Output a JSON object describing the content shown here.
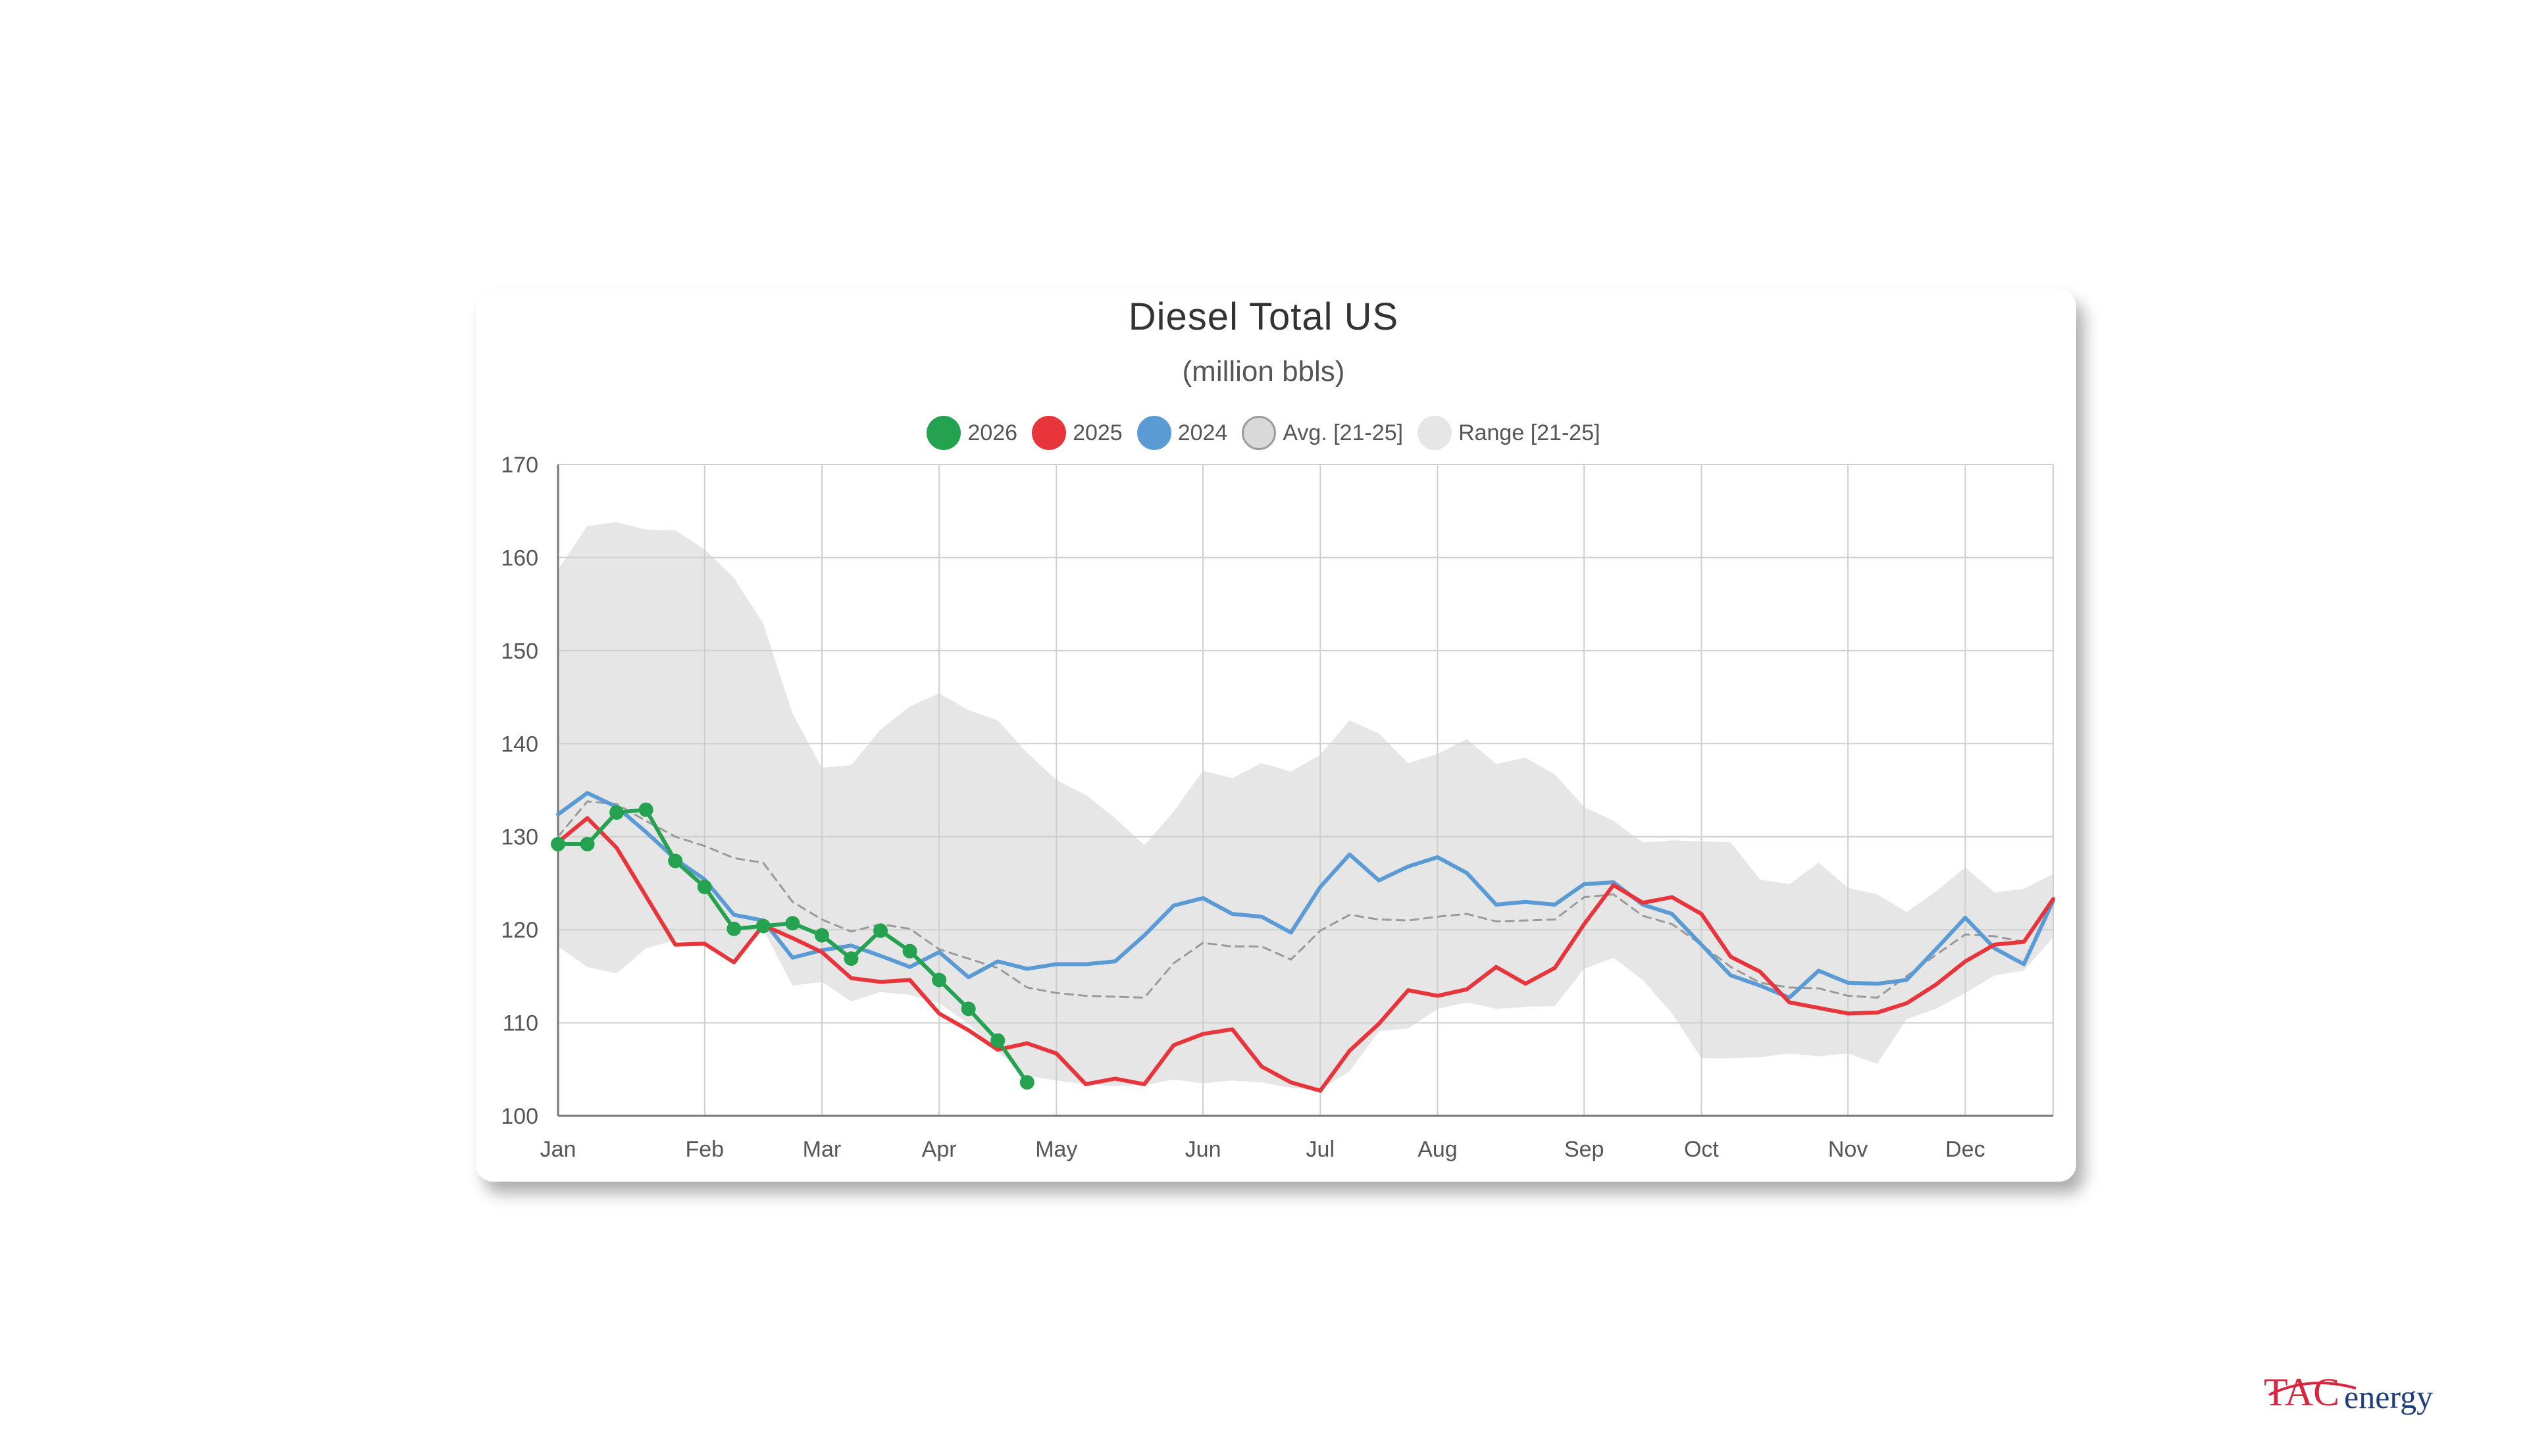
{
  "chart_data": {
    "type": "line",
    "title": "Diesel Total US",
    "subtitle": "(million bbls)",
    "ylim": [
      100,
      170
    ],
    "y_ticks": [
      100,
      110,
      120,
      130,
      140,
      150,
      160,
      170
    ],
    "x_unit": "week of year",
    "xlim": [
      1,
      52
    ],
    "x_tick_labels": [
      "Jan",
      "Feb",
      "Mar",
      "Apr",
      "May",
      "Jun",
      "Jul",
      "Aug",
      "Sep",
      "Oct",
      "Nov",
      "Dec"
    ],
    "x_tick_weeks": [
      1,
      6,
      10,
      14,
      18,
      23,
      27,
      31,
      36,
      40,
      45,
      49
    ],
    "grid": true,
    "legend_position": "top-center",
    "legend": [
      {
        "label": "2026",
        "color": "#25a24f"
      },
      {
        "label": "2025",
        "color": "#e8343b"
      },
      {
        "label": "2024",
        "color": "#5b9bd5"
      },
      {
        "label": "Avg. [21-25]",
        "color": "#d9d9d9"
      },
      {
        "label": "Range [21-25]",
        "color": "#e6e6e6"
      }
    ],
    "series": [
      {
        "name": "2026",
        "color": "#25a24f",
        "markers": true,
        "x": [
          1,
          2,
          3,
          4,
          5,
          6,
          7,
          8,
          9,
          10,
          11,
          12,
          13,
          14,
          15,
          16,
          17
        ],
        "y": [
          129.2,
          129.2,
          132.6,
          132.9,
          127.4,
          124.6,
          120.1,
          120.4,
          120.7,
          119.4,
          116.9,
          119.9,
          117.7,
          114.6,
          111.5,
          108.1,
          103.6
        ]
      },
      {
        "name": "2025",
        "color": "#e8343b",
        "x": [
          1,
          2,
          3,
          4,
          5,
          6,
          7,
          8,
          9,
          10,
          11,
          12,
          13,
          14,
          15,
          16,
          17,
          18,
          19,
          20,
          21,
          22,
          23,
          24,
          25,
          26,
          27,
          28,
          29,
          30,
          31,
          32,
          33,
          34,
          35,
          36,
          37,
          38,
          39,
          40,
          41,
          42,
          43,
          44,
          45,
          46,
          47,
          48,
          49,
          50,
          51,
          52
        ],
        "y": [
          129.4,
          132.0,
          128.8,
          123.6,
          118.4,
          118.5,
          116.5,
          120.5,
          119.1,
          117.6,
          114.8,
          114.4,
          114.6,
          111.0,
          109.2,
          107.1,
          107.8,
          106.7,
          103.4,
          104.0,
          103.4,
          107.6,
          108.8,
          109.3,
          105.3,
          103.6,
          102.7,
          107.0,
          109.9,
          113.5,
          112.9,
          113.6,
          116.0,
          114.2,
          115.9,
          120.6,
          124.8,
          122.9,
          123.5,
          121.7,
          117.1,
          115.5,
          112.2,
          111.6,
          111.0,
          111.1,
          112.1,
          114.1,
          116.6,
          118.4,
          118.7,
          123.3
        ]
      },
      {
        "name": "2024",
        "color": "#5b9bd5",
        "x": [
          1,
          2,
          3,
          4,
          5,
          6,
          7,
          8,
          9,
          10,
          11,
          12,
          13,
          14,
          15,
          16,
          17,
          18,
          19,
          20,
          21,
          22,
          23,
          24,
          25,
          26,
          27,
          28,
          29,
          30,
          31,
          32,
          33,
          34,
          35,
          36,
          37,
          38,
          39,
          40,
          41,
          42,
          43,
          44,
          45,
          46,
          47,
          48,
          49,
          50,
          51,
          52
        ],
        "y": [
          132.4,
          134.7,
          133.2,
          130.5,
          127.6,
          125.4,
          121.6,
          121.0,
          117.0,
          117.8,
          118.3,
          117.2,
          116.0,
          117.6,
          114.9,
          116.6,
          115.8,
          116.3,
          116.3,
          116.6,
          119.4,
          122.6,
          123.4,
          121.7,
          121.4,
          119.7,
          124.6,
          128.1,
          125.3,
          126.8,
          127.8,
          126.1,
          122.7,
          123.0,
          122.7,
          124.9,
          125.1,
          122.7,
          121.7,
          118.4,
          115.1,
          114.0,
          112.7,
          115.6,
          114.3,
          114.2,
          114.6,
          117.9,
          121.3,
          118.0,
          116.3,
          123.1
        ]
      },
      {
        "name": "Avg. [21-25]",
        "color": "#9a9a9a",
        "dashed": true,
        "x": [
          1,
          2,
          3,
          4,
          5,
          6,
          7,
          8,
          9,
          10,
          11,
          12,
          13,
          14,
          15,
          16,
          17,
          18,
          19,
          20,
          21,
          22,
          23,
          24,
          25,
          26,
          27,
          28,
          29,
          30,
          31,
          32,
          33,
          34,
          35,
          36,
          37,
          38,
          39,
          40,
          41,
          42,
          43,
          44,
          45,
          46,
          47,
          48,
          49,
          50,
          51,
          52
        ],
        "y": [
          130.0,
          133.8,
          133.5,
          131.7,
          130.0,
          129.0,
          127.7,
          127.2,
          123.0,
          121.1,
          119.8,
          120.6,
          120.1,
          117.9,
          116.9,
          115.9,
          113.8,
          113.2,
          112.9,
          112.8,
          112.7,
          116.4,
          118.6,
          118.2,
          118.2,
          116.8,
          119.9,
          121.6,
          121.1,
          121.0,
          121.4,
          121.7,
          120.9,
          121.0,
          121.1,
          123.5,
          123.8,
          121.5,
          120.6,
          118.4,
          116.0,
          114.3,
          113.8,
          113.7,
          112.9,
          112.7,
          115.0,
          117.3,
          119.5,
          119.3,
          118.7,
          123.0
        ]
      },
      {
        "name": "Range [21-25]",
        "color": "#e6e6e6",
        "type": "range",
        "x": [
          1,
          2,
          3,
          4,
          5,
          6,
          7,
          8,
          9,
          10,
          11,
          12,
          13,
          14,
          15,
          16,
          17,
          18,
          19,
          20,
          21,
          22,
          23,
          24,
          25,
          26,
          27,
          28,
          29,
          30,
          31,
          32,
          33,
          34,
          35,
          36,
          37,
          38,
          39,
          40,
          41,
          42,
          43,
          44,
          45,
          46,
          47,
          48,
          49,
          50,
          51,
          52
        ],
        "high": [
          158.7,
          163.4,
          163.8,
          163.0,
          162.9,
          160.9,
          157.8,
          152.9,
          143.2,
          137.4,
          137.7,
          141.5,
          144.0,
          145.4,
          143.6,
          142.5,
          139.0,
          136.1,
          134.5,
          132.0,
          129.1,
          132.7,
          137.1,
          136.3,
          137.9,
          137.0,
          138.8,
          142.5,
          141.1,
          137.9,
          138.9,
          140.5,
          137.8,
          138.5,
          136.7,
          133.2,
          131.7,
          129.4,
          129.6,
          129.5,
          129.4,
          125.4,
          124.9,
          127.2,
          124.5,
          123.8,
          121.9,
          124.1,
          126.7,
          124.0,
          124.4,
          126.0
        ],
        "low": [
          118.2,
          116.0,
          115.3,
          118.0,
          118.9,
          118.4,
          117.0,
          120.0,
          114.0,
          114.4,
          112.3,
          113.3,
          113.0,
          112.1,
          109.9,
          106.9,
          104.3,
          103.8,
          103.4,
          103.2,
          103.3,
          103.9,
          103.5,
          103.8,
          103.6,
          103.0,
          102.8,
          104.8,
          109.1,
          109.4,
          111.5,
          112.2,
          111.5,
          111.7,
          111.8,
          115.8,
          117.0,
          114.6,
          111.0,
          106.2,
          106.2,
          106.3,
          106.7,
          106.4,
          106.7,
          105.6,
          110.4,
          111.5,
          113.2,
          115.1,
          115.6,
          119.2
        ]
      }
    ]
  },
  "logo": {
    "text_tac": "TAC",
    "text_energy": "energy"
  }
}
